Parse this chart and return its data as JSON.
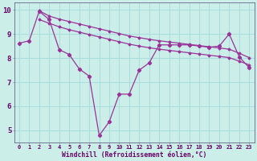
{
  "bg_color": "#cceee8",
  "grid_color": "#aadddd",
  "line_color": "#993399",
  "xlabel": "Windchill (Refroidissement éolien,°C)",
  "xlim": [
    -0.5,
    23.5
  ],
  "ylim": [
    4.5,
    10.3
  ],
  "yticks": [
    5,
    6,
    7,
    8,
    9,
    10
  ],
  "xticks": [
    0,
    1,
    2,
    3,
    4,
    5,
    6,
    7,
    8,
    9,
    10,
    11,
    12,
    13,
    14,
    15,
    16,
    17,
    18,
    19,
    20,
    21,
    22,
    23
  ],
  "data_x": [
    0,
    1,
    2,
    3,
    4,
    5,
    6,
    7,
    8,
    9,
    10,
    11,
    12,
    13,
    14,
    15,
    16,
    17,
    18,
    19,
    20,
    21,
    22,
    23
  ],
  "line1_y": [
    8.62,
    8.72,
    9.95,
    9.6,
    8.35,
    8.15,
    7.55,
    7.25,
    4.78,
    5.35,
    6.5,
    6.5,
    7.5,
    7.8,
    8.55,
    8.55,
    8.55,
    8.55,
    8.5,
    8.45,
    8.5,
    9.0,
    8.05,
    7.6
  ],
  "line2_y": [
    null,
    null,
    9.97,
    9.75,
    9.62,
    9.52,
    9.42,
    9.32,
    9.22,
    9.12,
    9.02,
    8.92,
    8.85,
    8.78,
    8.72,
    8.67,
    8.62,
    8.57,
    8.52,
    8.47,
    8.42,
    8.37,
    8.2,
    8.02
  ],
  "line3_y": [
    null,
    null,
    9.6,
    9.45,
    9.3,
    9.18,
    9.08,
    8.98,
    8.88,
    8.78,
    8.68,
    8.58,
    8.5,
    8.43,
    8.37,
    8.32,
    8.27,
    8.22,
    8.17,
    8.12,
    8.07,
    8.02,
    7.87,
    7.72
  ]
}
